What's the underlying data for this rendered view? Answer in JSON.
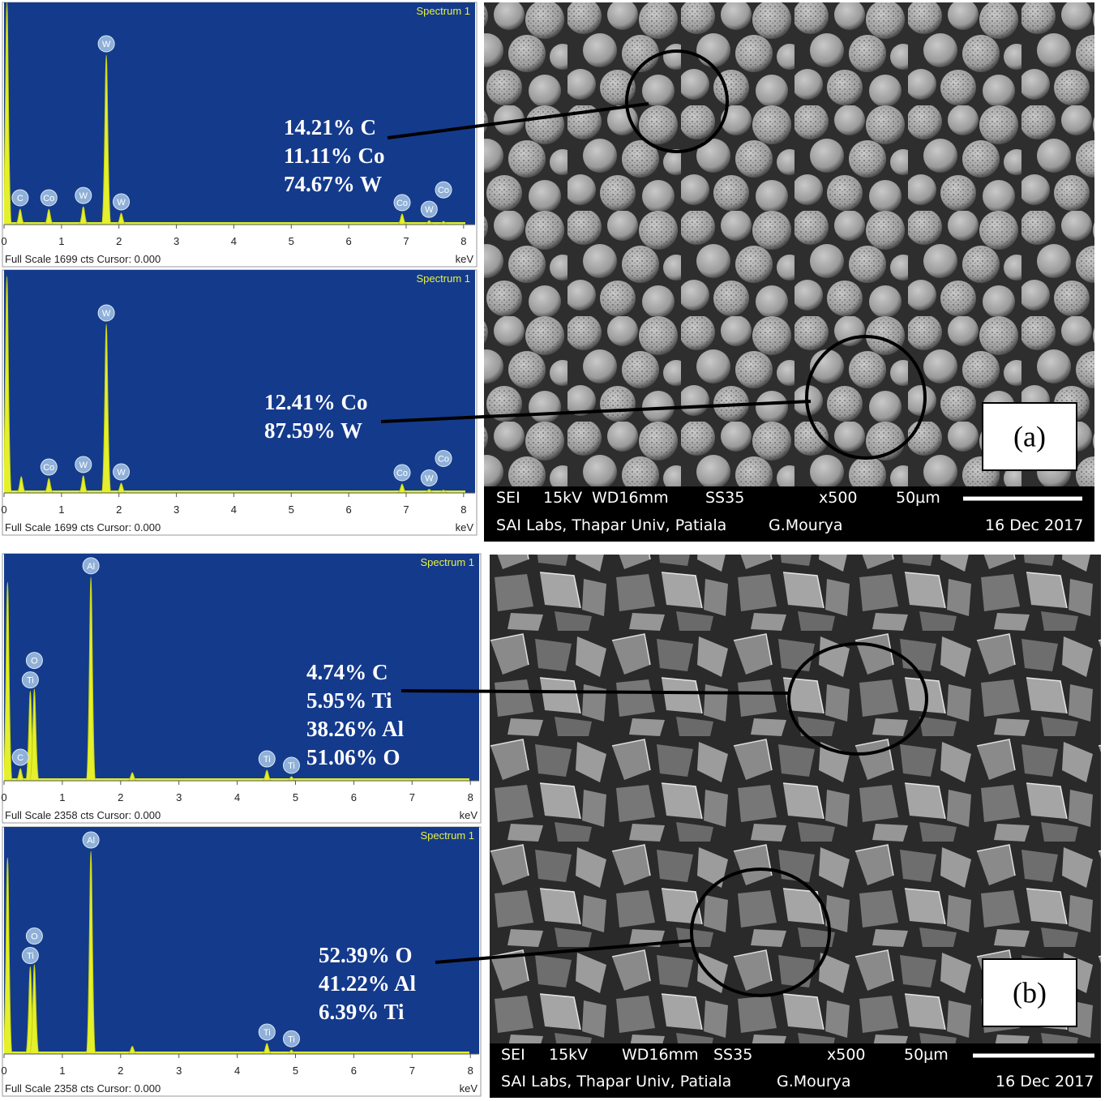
{
  "panels": [
    {
      "label": "(a)",
      "spectra": [
        {
          "title": "Spectrum 1",
          "footer": "Full Scale 1699 cts Cursor: 0.000",
          "unit": "keV",
          "xlim": [
            0,
            8.2
          ],
          "ylim": [
            0,
            1699
          ],
          "xticks": [
            0,
            1,
            2,
            3,
            4,
            5,
            6,
            7,
            8
          ],
          "composition": [
            "14.21% C",
            "11.11% Co",
            "74.67% W"
          ],
          "peaks": [
            {
              "element": null,
              "kev": 0.05,
              "counts": 1699
            },
            {
              "element": "C",
              "kev": 0.28,
              "counts": 118
            },
            {
              "element": "Co",
              "kev": 0.78,
              "counts": 118
            },
            {
              "element": "W",
              "kev": 1.38,
              "counts": 136
            },
            {
              "element": "W",
              "kev": 1.78,
              "counts": 1296
            },
            {
              "element": "W",
              "kev": 2.04,
              "counts": 87
            },
            {
              "element": "Co",
              "kev": 6.93,
              "counts": 81
            },
            {
              "element": "W",
              "kev": 7.4,
              "counts": 30
            },
            {
              "element": "Co",
              "kev": 7.65,
              "counts": 25
            }
          ]
        },
        {
          "title": "Spectrum 1",
          "footer": "Full Scale 1699 cts Cursor: 0.000",
          "unit": "keV",
          "xlim": [
            0,
            8.2
          ],
          "ylim": [
            0,
            1699
          ],
          "xticks": [
            0,
            1,
            2,
            3,
            4,
            5,
            6,
            7,
            8
          ],
          "composition": [
            "12.41% Co",
            "87.59% W"
          ],
          "peaks": [
            {
              "element": null,
              "kev": 0.05,
              "counts": 1650
            },
            {
              "element": null,
              "kev": 0.3,
              "counts": 124
            },
            {
              "element": "Co",
              "kev": 0.78,
              "counts": 111
            },
            {
              "element": "W",
              "kev": 1.38,
              "counts": 130
            },
            {
              "element": "W",
              "kev": 1.78,
              "counts": 1285
            },
            {
              "element": "W",
              "kev": 2.04,
              "counts": 74
            },
            {
              "element": "Co",
              "kev": 6.93,
              "counts": 68
            },
            {
              "element": "W",
              "kev": 7.4,
              "counts": 28
            },
            {
              "element": "Co",
              "kev": 7.65,
              "counts": 22
            }
          ]
        }
      ],
      "sem": {
        "settings": [
          "SEI",
          "15kV",
          "WD16mm",
          "SS35",
          "x500",
          "50µm"
        ],
        "footer": [
          "SAI Labs, Thapar Univ, Patiala",
          "G.Mourya",
          "16 Dec 2017"
        ]
      }
    },
    {
      "label": "(b)",
      "spectra": [
        {
          "title": "Spectrum 1",
          "footer": "Full Scale 2358 cts Cursor: 0.000",
          "unit": "keV",
          "xlim": [
            0,
            8.15
          ],
          "ylim": [
            0,
            2358
          ],
          "xticks": [
            0,
            1,
            2,
            3,
            4,
            5,
            6,
            7,
            8
          ],
          "composition": [
            "4.74% C",
            "5.95% Ti",
            "38.26% Al",
            "51.06% O"
          ],
          "peaks": [
            {
              "element": null,
              "kev": 0.06,
              "counts": 2063
            },
            {
              "element": "C",
              "kev": 0.28,
              "counts": 126
            },
            {
              "element": "Ti",
              "kev": 0.45,
              "counts": 930
            },
            {
              "element": "O",
              "kev": 0.52,
              "counts": 952
            },
            {
              "element": "Al",
              "kev": 1.49,
              "counts": 2115
            },
            {
              "element": null,
              "kev": 2.2,
              "counts": 84
            },
            {
              "element": "Ti",
              "kev": 4.51,
              "counts": 109
            },
            {
              "element": "Ti",
              "kev": 4.93,
              "counts": 42
            }
          ]
        },
        {
          "title": "Spectrum 1",
          "footer": "Full Scale 2358 cts Cursor: 0.000",
          "unit": "keV",
          "xlim": [
            0,
            8.15
          ],
          "ylim": [
            0,
            2358
          ],
          "xticks": [
            0,
            1,
            2,
            3,
            4,
            5,
            6,
            7,
            8
          ],
          "composition": [
            "52.39% O",
            "41.22% Al",
            "6.39% Ti"
          ],
          "peaks": [
            {
              "element": null,
              "kev": 0.06,
              "counts": 2037
            },
            {
              "element": "Ti",
              "kev": 0.45,
              "counts": 905
            },
            {
              "element": "O",
              "kev": 0.52,
              "counts": 926
            },
            {
              "element": "Al",
              "kev": 1.49,
              "counts": 2105
            },
            {
              "element": null,
              "kev": 2.2,
              "counts": 80
            },
            {
              "element": "Ti",
              "kev": 4.51,
              "counts": 110
            },
            {
              "element": "Ti",
              "kev": 4.93,
              "counts": 40
            }
          ]
        }
      ],
      "sem": {
        "settings": [
          "SEI",
          "15kV",
          "WD16mm",
          "SS35",
          "x500",
          "50µm"
        ],
        "footer": [
          "SAI Labs, Thapar Univ, Patiala",
          "G.Mourya",
          "16 Dec 2017"
        ]
      }
    }
  ]
}
